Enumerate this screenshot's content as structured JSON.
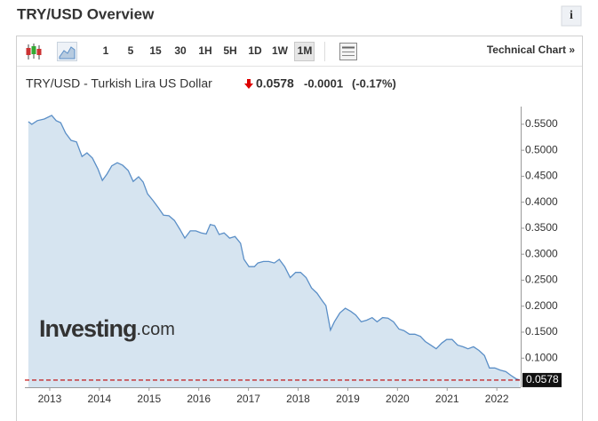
{
  "header": {
    "title": "TRY/USD Overview",
    "info": "i"
  },
  "toolbar": {
    "intervals": [
      "1",
      "5",
      "15",
      "30",
      "1H",
      "5H",
      "1D",
      "1W",
      "1M"
    ],
    "active": "1M",
    "technical_chart": "Technical Chart »"
  },
  "quote": {
    "name": "TRY/USD - Turkish Lira US Dollar",
    "last": 0.0578,
    "change": -0.0001,
    "change_pct": "(-0.17%)"
  },
  "watermark": {
    "brand": "Investing",
    "suffix": ".com"
  },
  "chart_data": {
    "type": "area",
    "color": "#5b8fc7",
    "fill": "#d6e4f0",
    "price_line_color": "#c00000",
    "x": [
      2012.57,
      2012.64,
      2012.75,
      2012.89,
      2013.04,
      2013.13,
      2013.22,
      2013.32,
      2013.43,
      2013.54,
      2013.65,
      2013.75,
      2013.86,
      2013.97,
      2014.06,
      2014.15,
      2014.25,
      2014.36,
      2014.47,
      2014.58,
      2014.68,
      2014.79,
      2014.88,
      2014.97,
      2015.08,
      2015.19,
      2015.29,
      2015.4,
      2015.51,
      2015.62,
      2015.72,
      2015.83,
      2015.94,
      2016.05,
      2016.15,
      2016.23,
      2016.32,
      2016.41,
      2016.51,
      2016.62,
      2016.73,
      2016.84,
      2016.91,
      2017.01,
      2017.12,
      2017.19,
      2017.3,
      2017.41,
      2017.52,
      2017.62,
      2017.73,
      2017.84,
      2017.95,
      2018.05,
      2018.16,
      2018.27,
      2018.38,
      2018.48,
      2018.56,
      2018.65,
      2018.73,
      2018.84,
      2018.95,
      2019.06,
      2019.16,
      2019.27,
      2019.38,
      2019.49,
      2019.59,
      2019.7,
      2019.81,
      2019.92,
      2020.03,
      2020.13,
      2020.24,
      2020.35,
      2020.46,
      2020.56,
      2020.67,
      2020.78,
      2020.89,
      2020.99,
      2021.1,
      2021.21,
      2021.32,
      2021.42,
      2021.53,
      2021.64,
      2021.75,
      2021.85,
      2021.96,
      2022.07,
      2022.18,
      2022.28,
      2022.39,
      2022.46
    ],
    "values": [
      0.555,
      0.55,
      0.557,
      0.56,
      0.567,
      0.557,
      0.553,
      0.533,
      0.519,
      0.516,
      0.488,
      0.495,
      0.485,
      0.464,
      0.442,
      0.454,
      0.47,
      0.476,
      0.471,
      0.461,
      0.44,
      0.449,
      0.439,
      0.416,
      0.403,
      0.389,
      0.375,
      0.374,
      0.365,
      0.348,
      0.331,
      0.345,
      0.345,
      0.341,
      0.339,
      0.357,
      0.355,
      0.338,
      0.341,
      0.331,
      0.334,
      0.321,
      0.29,
      0.276,
      0.276,
      0.283,
      0.286,
      0.286,
      0.283,
      0.29,
      0.276,
      0.255,
      0.265,
      0.265,
      0.255,
      0.235,
      0.225,
      0.211,
      0.201,
      0.154,
      0.17,
      0.187,
      0.196,
      0.19,
      0.183,
      0.17,
      0.173,
      0.178,
      0.17,
      0.178,
      0.177,
      0.17,
      0.156,
      0.153,
      0.146,
      0.146,
      0.142,
      0.132,
      0.125,
      0.118,
      0.129,
      0.136,
      0.136,
      0.125,
      0.122,
      0.118,
      0.122,
      0.115,
      0.105,
      0.081,
      0.081,
      0.077,
      0.074,
      0.067,
      0.06,
      0.0578
    ],
    "xlim": [
      2012.5,
      2022.48
    ],
    "ylim": [
      0.044,
      0.584
    ],
    "xticks": [
      2013,
      2014,
      2015,
      2016,
      2017,
      2018,
      2019,
      2020,
      2021,
      2022
    ],
    "yticks": [
      {
        "value": 0.1,
        "label": "0.1000"
      },
      {
        "value": 0.15,
        "label": "0.1500"
      },
      {
        "value": 0.2,
        "label": "0.2000"
      },
      {
        "value": 0.25,
        "label": "0.2500"
      },
      {
        "value": 0.3,
        "label": "0.3000"
      },
      {
        "value": 0.35,
        "label": "0.3500"
      },
      {
        "value": 0.4,
        "label": "0.4000"
      },
      {
        "value": 0.45,
        "label": "0.4500"
      },
      {
        "value": 0.5,
        "label": "0.5000"
      },
      {
        "value": 0.55,
        "label": "0.5500"
      }
    ],
    "grid": false
  }
}
